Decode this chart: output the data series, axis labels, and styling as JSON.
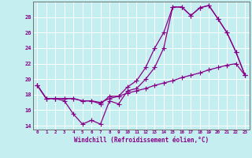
{
  "xlabel": "Windchill (Refroidissement éolien,°C)",
  "xlim": [
    -0.5,
    23.5
  ],
  "ylim": [
    13.5,
    30.0
  ],
  "yticks": [
    14,
    16,
    18,
    20,
    22,
    24,
    26,
    28
  ],
  "xticks": [
    0,
    1,
    2,
    3,
    4,
    5,
    6,
    7,
    8,
    9,
    10,
    11,
    12,
    13,
    14,
    15,
    16,
    17,
    18,
    19,
    20,
    21,
    22,
    23
  ],
  "background_color": "#c5eef0",
  "grid_color": "#ffffff",
  "line_color": "#880088",
  "line1_x": [
    0,
    1,
    2,
    3,
    4,
    5,
    6,
    7,
    8,
    9,
    10,
    11,
    12,
    13,
    14,
    15,
    16,
    17,
    18,
    19,
    20,
    21,
    22,
    23
  ],
  "line1_y": [
    19.2,
    17.5,
    17.5,
    17.5,
    17.5,
    17.2,
    17.2,
    16.8,
    17.8,
    17.8,
    19.0,
    19.8,
    21.5,
    24.0,
    26.0,
    29.3,
    29.3,
    28.2,
    29.2,
    29.5,
    27.8,
    26.0,
    23.5,
    20.5
  ],
  "line2_x": [
    0,
    1,
    2,
    3,
    4,
    5,
    6,
    7,
    8,
    9,
    10,
    11,
    12,
    13,
    14,
    15,
    16,
    17,
    18,
    19,
    20,
    21,
    22,
    23
  ],
  "line2_y": [
    19.2,
    17.5,
    17.5,
    17.2,
    15.5,
    14.2,
    14.7,
    14.2,
    17.2,
    16.8,
    18.5,
    18.8,
    20.0,
    21.5,
    24.0,
    29.3,
    29.3,
    28.2,
    29.2,
    29.5,
    27.8,
    26.0,
    23.5,
    20.5
  ],
  "line3_x": [
    0,
    1,
    2,
    3,
    4,
    5,
    6,
    7,
    8,
    9,
    10,
    11,
    12,
    13,
    14,
    15,
    16,
    17,
    18,
    19,
    20,
    21,
    22,
    23
  ],
  "line3_y": [
    19.2,
    17.5,
    17.5,
    17.5,
    17.5,
    17.2,
    17.2,
    17.0,
    17.5,
    17.8,
    18.2,
    18.5,
    18.8,
    19.2,
    19.5,
    19.8,
    20.2,
    20.5,
    20.8,
    21.2,
    21.5,
    21.8,
    22.0,
    20.5
  ]
}
